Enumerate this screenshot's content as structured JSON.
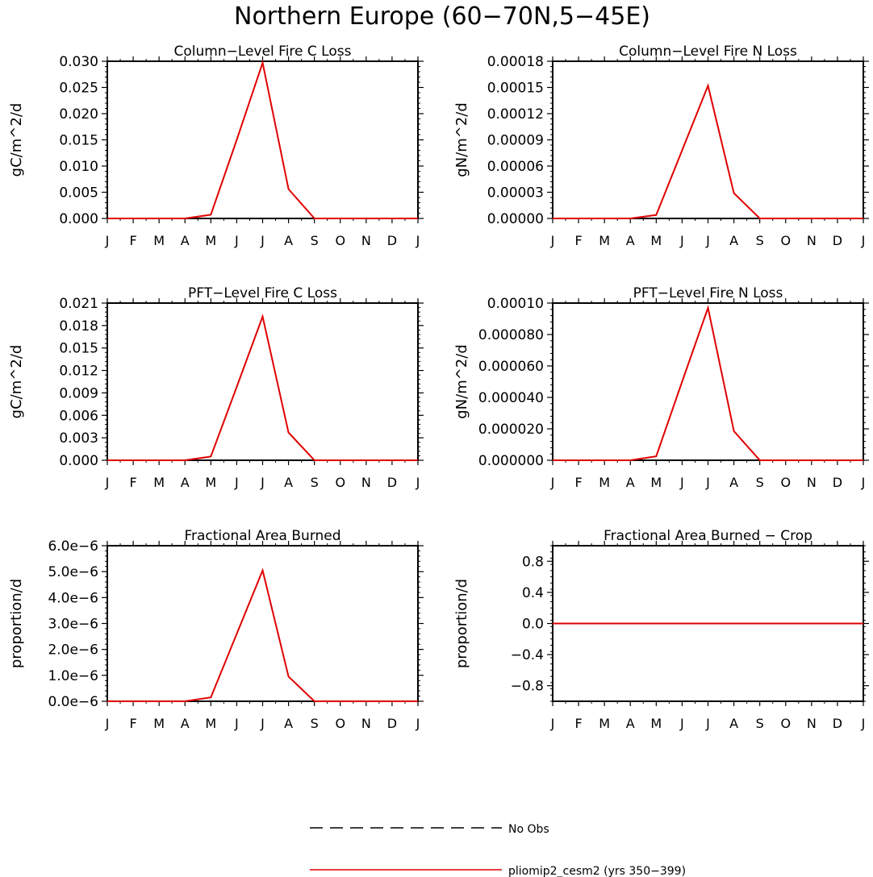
{
  "page": {
    "title": "Northern Europe (60−70N,5−45E)"
  },
  "month_labels": [
    "J",
    "F",
    "M",
    "A",
    "M",
    "J",
    "J",
    "A",
    "S",
    "O",
    "N",
    "D",
    "J"
  ],
  "series_style": {
    "model_color": "#e00000",
    "obs_color": "#000000"
  },
  "chart_data": [
    {
      "type": "line",
      "title": "Column−Level Fire C Loss",
      "ylabel": "gC/m^2/d",
      "x": [
        1,
        2,
        3,
        4,
        5,
        6,
        7,
        8,
        9,
        10,
        11,
        12,
        13
      ],
      "ylim": [
        0,
        0.03
      ],
      "yticks": [
        0,
        0.005,
        0.01,
        0.015,
        0.02,
        0.025,
        0.03
      ],
      "ytick_labels": [
        "0.000",
        "0.005",
        "0.010",
        "0.015",
        "0.020",
        "0.025",
        "0.030"
      ],
      "series": [
        {
          "name": "pliomip2_cesm2 (yrs 350−399)",
          "values": [
            0,
            0,
            0,
            0,
            0.0007,
            0.015,
            0.0297,
            0.0056,
            0,
            0,
            0,
            0,
            0
          ]
        }
      ]
    },
    {
      "type": "line",
      "title": "Column−Level Fire N Loss",
      "ylabel": "gN/m^2/d",
      "x": [
        1,
        2,
        3,
        4,
        5,
        6,
        7,
        8,
        9,
        10,
        11,
        12,
        13
      ],
      "ylim": [
        0,
        0.00018
      ],
      "yticks": [
        0,
        3e-05,
        6e-05,
        9e-05,
        0.00012,
        0.00015,
        0.00018
      ],
      "ytick_labels": [
        "0.00000",
        "0.00003",
        "0.00006",
        "0.00009",
        "0.00012",
        "0.00015",
        "0.00018"
      ],
      "series": [
        {
          "name": "pliomip2_cesm2 (yrs 350−399)",
          "values": [
            0,
            0,
            0,
            0,
            4e-06,
            7.8e-05,
            0.000152,
            2.9e-05,
            0,
            0,
            0,
            0,
            0
          ]
        }
      ]
    },
    {
      "type": "line",
      "title": "PFT−Level Fire C Loss",
      "ylabel": "gC/m^2/d",
      "x": [
        1,
        2,
        3,
        4,
        5,
        6,
        7,
        8,
        9,
        10,
        11,
        12,
        13
      ],
      "ylim": [
        0,
        0.021
      ],
      "yticks": [
        0,
        0.003,
        0.006,
        0.009,
        0.012,
        0.015,
        0.018,
        0.021
      ],
      "ytick_labels": [
        "0.000",
        "0.003",
        "0.006",
        "0.009",
        "0.012",
        "0.015",
        "0.018",
        "0.021"
      ],
      "series": [
        {
          "name": "pliomip2_cesm2 (yrs 350−399)",
          "values": [
            0,
            0,
            0,
            0,
            0.0005,
            0.0098,
            0.0192,
            0.0037,
            0,
            0,
            0,
            0,
            0
          ]
        }
      ]
    },
    {
      "type": "line",
      "title": "PFT−Level Fire N Loss",
      "ylabel": "gN/m^2/d",
      "x": [
        1,
        2,
        3,
        4,
        5,
        6,
        7,
        8,
        9,
        10,
        11,
        12,
        13
      ],
      "ylim": [
        0,
        0.0001
      ],
      "yticks": [
        0,
        2e-05,
        4e-05,
        6e-05,
        8e-05,
        0.0001
      ],
      "ytick_labels": [
        "0.000000",
        "0.000020",
        "0.000040",
        "0.000060",
        "0.000080",
        "0.00010"
      ],
      "series": [
        {
          "name": "pliomip2_cesm2 (yrs 350−399)",
          "values": [
            0,
            0,
            0,
            0,
            2.5e-06,
            5e-05,
            9.7e-05,
            1.85e-05,
            0,
            0,
            0,
            0,
            0
          ]
        }
      ]
    },
    {
      "type": "line",
      "title": "Fractional Area Burned",
      "ylabel": "proportion/d",
      "x": [
        1,
        2,
        3,
        4,
        5,
        6,
        7,
        8,
        9,
        10,
        11,
        12,
        13
      ],
      "ylim": [
        0,
        6e-06
      ],
      "yticks": [
        0,
        1e-06,
        2e-06,
        3e-06,
        4e-06,
        5e-06,
        6e-06
      ],
      "ytick_labels": [
        "0.0e−6",
        "1.0e−6",
        "2.0e−6",
        "3.0e−6",
        "4.0e−6",
        "5.0e−6",
        "6.0e−6"
      ],
      "series": [
        {
          "name": "pliomip2_cesm2 (yrs 350−399)",
          "values": [
            0,
            0,
            0,
            0,
            1.5e-07,
            2.6e-06,
            5.05e-06,
            9.5e-07,
            0,
            0,
            0,
            0,
            0
          ]
        }
      ]
    },
    {
      "type": "line",
      "title": "Fractional Area Burned − Crop",
      "ylabel": "proportion/d",
      "x": [
        1,
        2,
        3,
        4,
        5,
        6,
        7,
        8,
        9,
        10,
        11,
        12,
        13
      ],
      "ylim": [
        -1,
        1
      ],
      "yticks": [
        -0.8,
        -0.4,
        0,
        0.4,
        0.8
      ],
      "ytick_labels": [
        "−0.8",
        "−0.4",
        "0.0",
        "0.4",
        "0.8"
      ],
      "series": [
        {
          "name": "pliomip2_cesm2 (yrs 350−399)",
          "values": [
            0,
            0,
            0,
            0,
            0,
            0,
            0,
            0,
            0,
            0,
            0,
            0,
            0
          ]
        }
      ]
    }
  ],
  "legend": {
    "items": [
      {
        "label": "No Obs",
        "style": "dashed",
        "color": "#000000"
      },
      {
        "label": "pliomip2_cesm2 (yrs 350−399)",
        "style": "solid",
        "color": "#e00000"
      }
    ]
  }
}
